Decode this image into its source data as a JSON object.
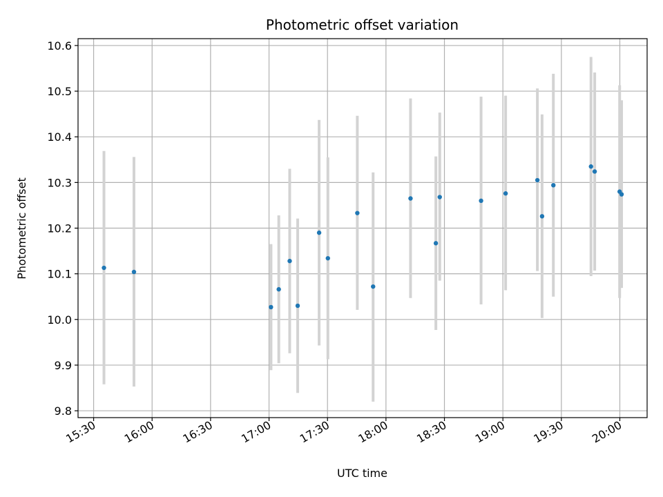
{
  "chart_data": {
    "type": "scatter",
    "title": "Photometric offset variation",
    "xlabel": "UTC time",
    "ylabel": "Photometric offset",
    "x_ticks": [
      "15:30",
      "16:00",
      "16:30",
      "17:00",
      "17:30",
      "18:00",
      "18:30",
      "19:00",
      "19:30",
      "20:00"
    ],
    "x_tick_minutes": [
      930,
      960,
      990,
      1020,
      1050,
      1080,
      1110,
      1140,
      1170,
      1200
    ],
    "xlim_minutes": [
      922,
      1214
    ],
    "y_ticks": [
      "9.8",
      "9.9",
      "10.0",
      "10.1",
      "10.2",
      "10.3",
      "10.4",
      "10.5",
      "10.6"
    ],
    "y_tick_values": [
      9.8,
      9.9,
      10.0,
      10.1,
      10.2,
      10.3,
      10.4,
      10.5,
      10.6
    ],
    "ylim": [
      9.785,
      10.615
    ],
    "grid": true,
    "marker_color": "#1f77b4",
    "errorbar_color": "#d3d3d3",
    "points": [
      {
        "t": "15:35",
        "minutes": 935.3,
        "y": 10.113,
        "low": 9.858,
        "high": 10.369
      },
      {
        "t": "15:51",
        "minutes": 950.7,
        "y": 10.104,
        "low": 9.853,
        "high": 10.356
      },
      {
        "t": "17:01",
        "minutes": 1021.0,
        "y": 10.027,
        "low": 9.889,
        "high": 10.165
      },
      {
        "t": "17:05",
        "minutes": 1025.0,
        "y": 10.066,
        "low": 9.904,
        "high": 10.228
      },
      {
        "t": "17:11",
        "minutes": 1030.6,
        "y": 10.128,
        "low": 9.926,
        "high": 10.33
      },
      {
        "t": "17:15",
        "minutes": 1034.7,
        "y": 10.03,
        "low": 9.839,
        "high": 10.221
      },
      {
        "t": "17:26",
        "minutes": 1045.7,
        "y": 10.19,
        "low": 9.943,
        "high": 10.437
      },
      {
        "t": "17:30",
        "minutes": 1050.2,
        "y": 10.134,
        "low": 9.913,
        "high": 10.355
      },
      {
        "t": "17:45",
        "minutes": 1065.3,
        "y": 10.233,
        "low": 10.021,
        "high": 10.446
      },
      {
        "t": "17:53",
        "minutes": 1073.4,
        "y": 10.072,
        "low": 9.82,
        "high": 10.322
      },
      {
        "t": "18:12",
        "minutes": 1092.6,
        "y": 10.265,
        "low": 10.047,
        "high": 10.484
      },
      {
        "t": "18:25",
        "minutes": 1105.6,
        "y": 10.167,
        "low": 9.977,
        "high": 10.357
      },
      {
        "t": "18:28",
        "minutes": 1107.6,
        "y": 10.268,
        "low": 10.085,
        "high": 10.453
      },
      {
        "t": "18:49",
        "minutes": 1128.8,
        "y": 10.26,
        "low": 10.033,
        "high": 10.488
      },
      {
        "t": "19:01",
        "minutes": 1141.4,
        "y": 10.276,
        "low": 10.064,
        "high": 10.49
      },
      {
        "t": "19:17",
        "minutes": 1157.7,
        "y": 10.305,
        "low": 10.106,
        "high": 10.506
      },
      {
        "t": "19:20",
        "minutes": 1160.1,
        "y": 10.226,
        "low": 10.003,
        "high": 10.449
      },
      {
        "t": "19:26",
        "minutes": 1165.9,
        "y": 10.294,
        "low": 10.05,
        "high": 10.538
      },
      {
        "t": "19:45",
        "minutes": 1185.2,
        "y": 10.335,
        "low": 10.095,
        "high": 10.575
      },
      {
        "t": "19:47",
        "minutes": 1187.1,
        "y": 10.324,
        "low": 10.107,
        "high": 10.541
      },
      {
        "t": "20:00",
        "minutes": 1199.9,
        "y": 10.28,
        "low": 10.047,
        "high": 10.513
      },
      {
        "t": "20:01",
        "minutes": 1200.9,
        "y": 10.274,
        "low": 10.069,
        "high": 10.48
      }
    ]
  }
}
